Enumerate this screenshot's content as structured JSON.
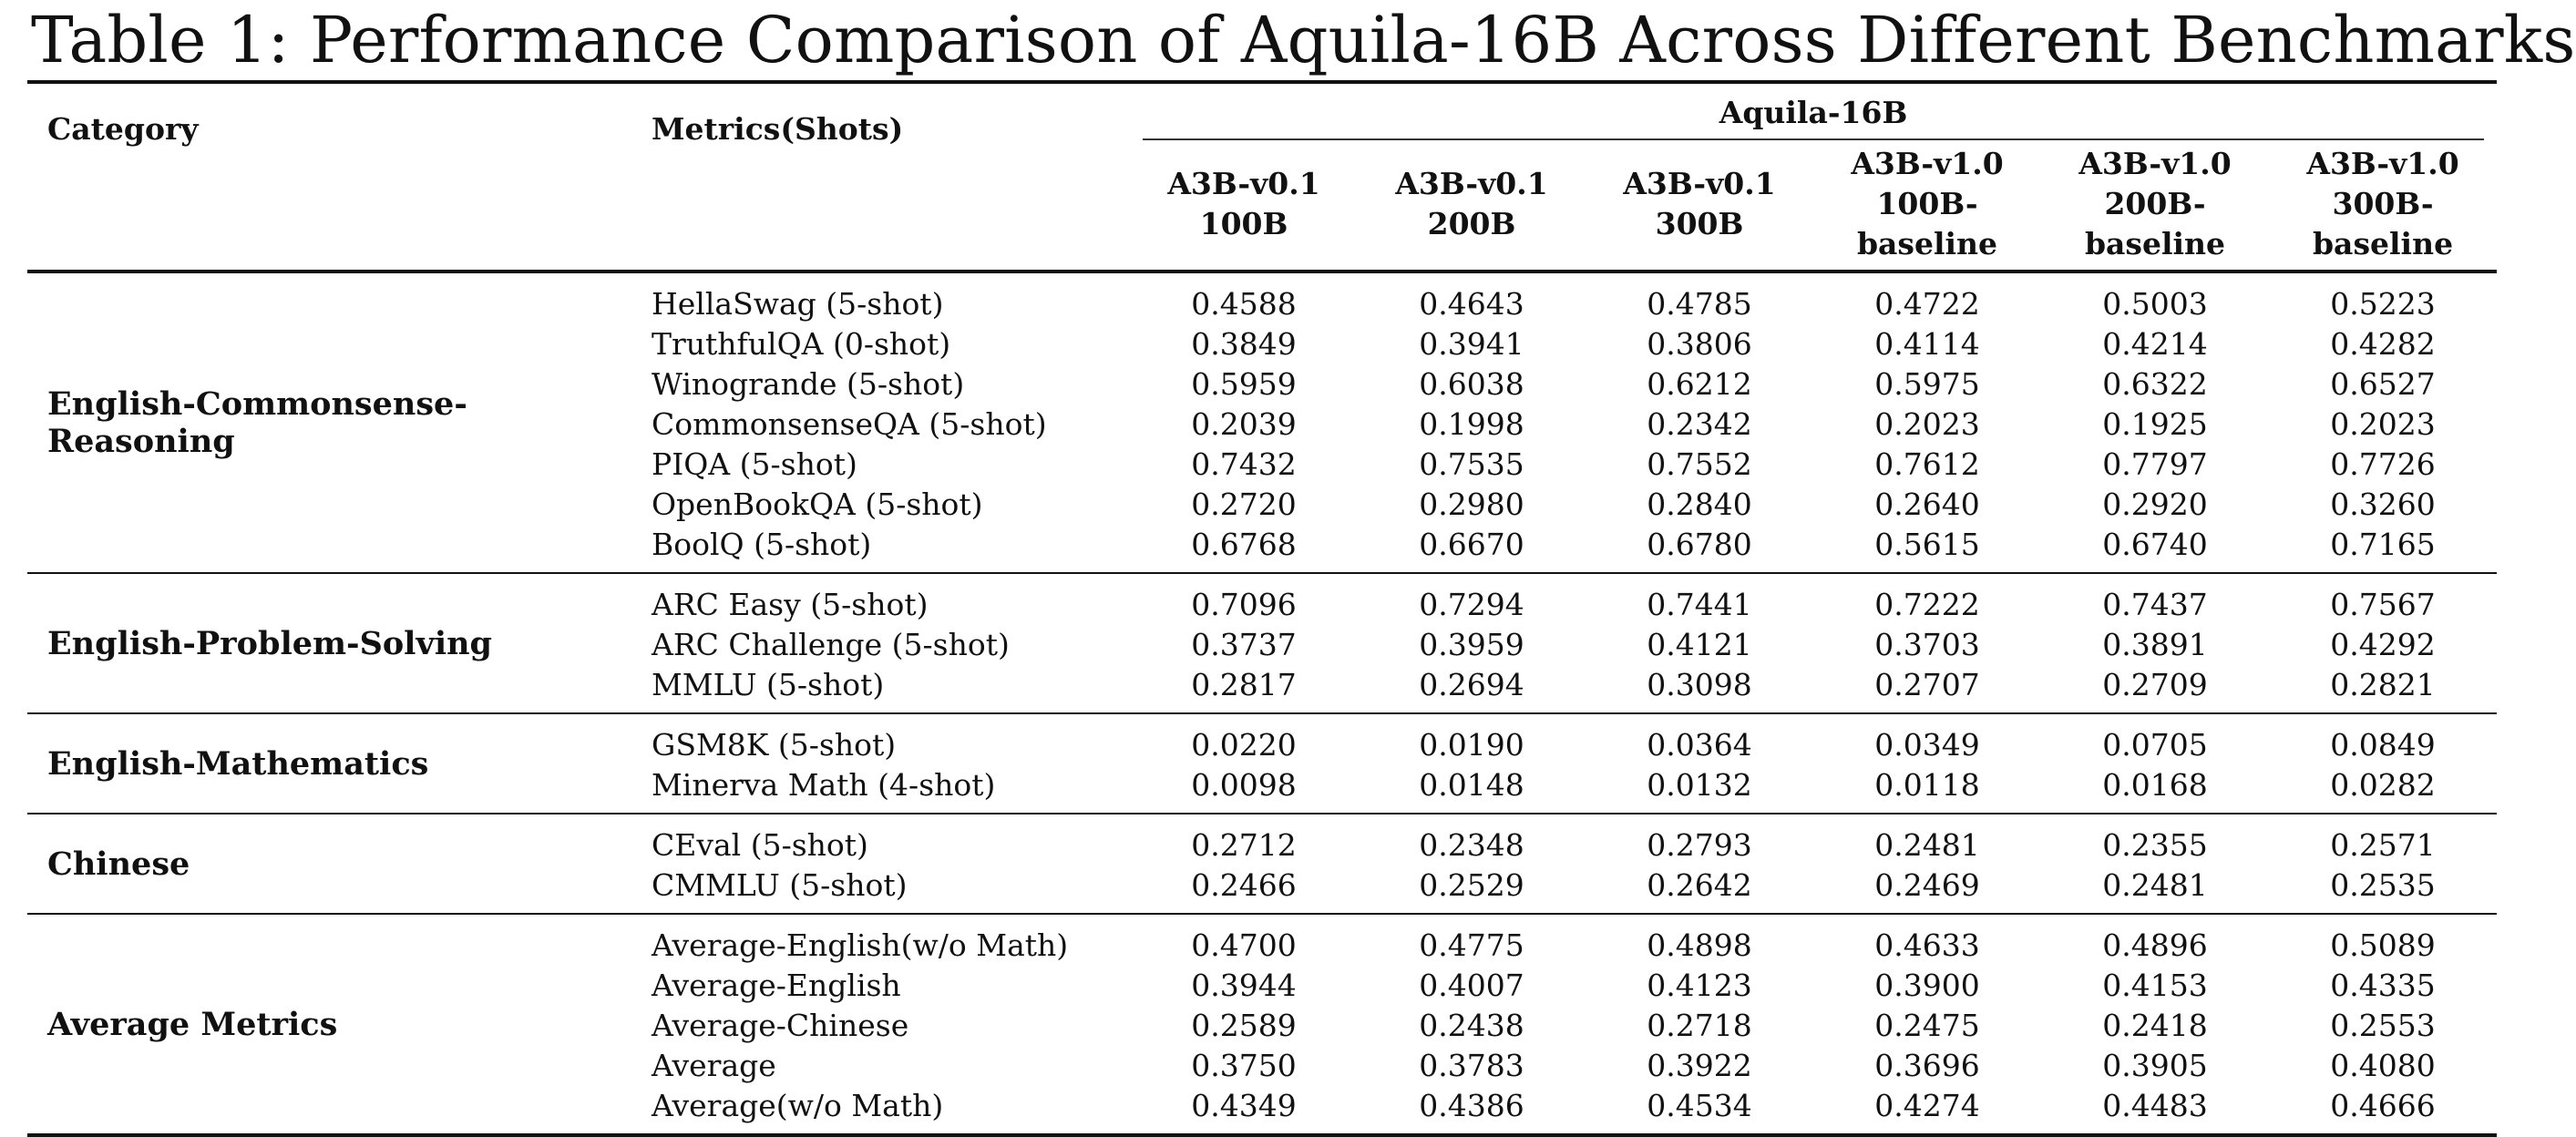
{
  "title": "Table 1: Performance Comparison of Aquila-16B Across Different Benchmarks",
  "header": {
    "category": "Category",
    "metrics": "Metrics(Shots)",
    "group": "Aquila-16B",
    "columns": [
      {
        "line1": "A3B-v0.1",
        "line2": "100B"
      },
      {
        "line1": "A3B-v0.1",
        "line2": "200B"
      },
      {
        "line1": "A3B-v0.1",
        "line2": "300B"
      },
      {
        "line1": "A3B-v1.0",
        "line2": "100B-baseline"
      },
      {
        "line1": "A3B-v1.0",
        "line2": "200B-baseline"
      },
      {
        "line1": "A3B-v1.0",
        "line2": "300B-baseline"
      }
    ]
  },
  "sections": [
    {
      "category": "English-Commonsense-Reasoning",
      "rows": [
        {
          "metric": "HellaSwag (5-shot)",
          "values": [
            "0.4588",
            "0.4643",
            "0.4785",
            "0.4722",
            "0.5003",
            "0.5223"
          ]
        },
        {
          "metric": "TruthfulQA (0-shot)",
          "values": [
            "0.3849",
            "0.3941",
            "0.3806",
            "0.4114",
            "0.4214",
            "0.4282"
          ]
        },
        {
          "metric": "Winogrande (5-shot)",
          "values": [
            "0.5959",
            "0.6038",
            "0.6212",
            "0.5975",
            "0.6322",
            "0.6527"
          ]
        },
        {
          "metric": "CommonsenseQA (5-shot)",
          "values": [
            "0.2039",
            "0.1998",
            "0.2342",
            "0.2023",
            "0.1925",
            "0.2023"
          ]
        },
        {
          "metric": "PIQA (5-shot)",
          "values": [
            "0.7432",
            "0.7535",
            "0.7552",
            "0.7612",
            "0.7797",
            "0.7726"
          ]
        },
        {
          "metric": "OpenBookQA (5-shot)",
          "values": [
            "0.2720",
            "0.2980",
            "0.2840",
            "0.2640",
            "0.2920",
            "0.3260"
          ]
        },
        {
          "metric": "BoolQ (5-shot)",
          "values": [
            "0.6768",
            "0.6670",
            "0.6780",
            "0.5615",
            "0.6740",
            "0.7165"
          ]
        }
      ]
    },
    {
      "category": "English-Problem-Solving",
      "rows": [
        {
          "metric": "ARC Easy (5-shot)",
          "values": [
            "0.7096",
            "0.7294",
            "0.7441",
            "0.7222",
            "0.7437",
            "0.7567"
          ]
        },
        {
          "metric": "ARC Challenge (5-shot)",
          "values": [
            "0.3737",
            "0.3959",
            "0.4121",
            "0.3703",
            "0.3891",
            "0.4292"
          ]
        },
        {
          "metric": "MMLU (5-shot)",
          "values": [
            "0.2817",
            "0.2694",
            "0.3098",
            "0.2707",
            "0.2709",
            "0.2821"
          ]
        }
      ]
    },
    {
      "category": "English-Mathematics",
      "rows": [
        {
          "metric": "GSM8K (5-shot)",
          "values": [
            "0.0220",
            "0.0190",
            "0.0364",
            "0.0349",
            "0.0705",
            "0.0849"
          ]
        },
        {
          "metric": "Minerva Math (4-shot)",
          "values": [
            "0.0098",
            "0.0148",
            "0.0132",
            "0.0118",
            "0.0168",
            "0.0282"
          ]
        }
      ]
    },
    {
      "category": "Chinese",
      "rows": [
        {
          "metric": "CEval (5-shot)",
          "values": [
            "0.2712",
            "0.2348",
            "0.2793",
            "0.2481",
            "0.2355",
            "0.2571"
          ]
        },
        {
          "metric": "CMMLU (5-shot)",
          "values": [
            "0.2466",
            "0.2529",
            "0.2642",
            "0.2469",
            "0.2481",
            "0.2535"
          ]
        }
      ]
    },
    {
      "category": "Average Metrics",
      "rows": [
        {
          "metric": "Average-English(w/o Math)",
          "values": [
            "0.4700",
            "0.4775",
            "0.4898",
            "0.4633",
            "0.4896",
            "0.5089"
          ]
        },
        {
          "metric": "Average-English",
          "values": [
            "0.3944",
            "0.4007",
            "0.4123",
            "0.3900",
            "0.4153",
            "0.4335"
          ]
        },
        {
          "metric": "Average-Chinese",
          "values": [
            "0.2589",
            "0.2438",
            "0.2718",
            "0.2475",
            "0.2418",
            "0.2553"
          ]
        },
        {
          "metric": "Average",
          "values": [
            "0.3750",
            "0.3783",
            "0.3922",
            "0.3696",
            "0.3905",
            "0.4080"
          ]
        },
        {
          "metric": "Average(w/o Math)",
          "values": [
            "0.4349",
            "0.4386",
            "0.4534",
            "0.4274",
            "0.4483",
            "0.4666"
          ]
        }
      ]
    }
  ]
}
